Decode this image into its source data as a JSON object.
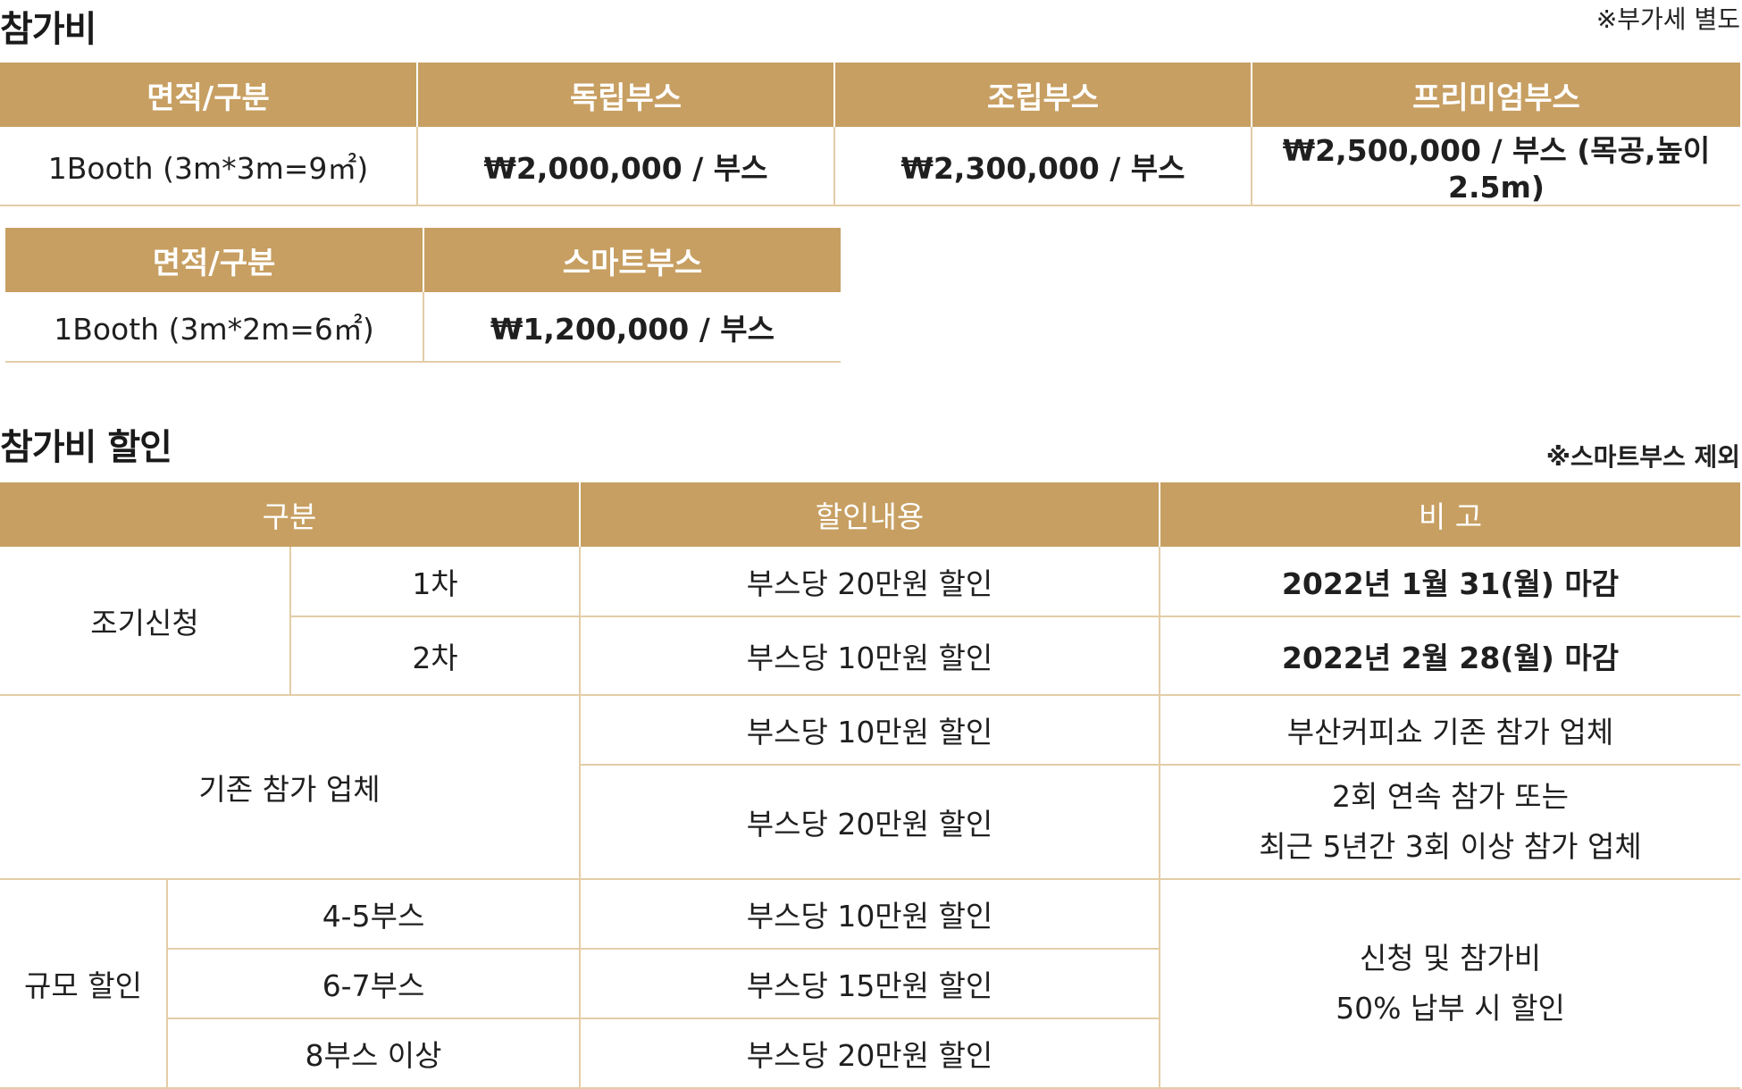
{
  "section1": {
    "title": "참가비",
    "note": "※부가세 별도"
  },
  "table1": {
    "headers": [
      "면적/구분",
      "독립부스",
      "조립부스",
      "프리미엄부스"
    ],
    "row": [
      "1Booth (3m*3m=9㎡)",
      "₩2,000,000 / 부스",
      "₩2,300,000 / 부스",
      "₩2,500,000 / 부스 (목공,높이 2.5m)"
    ]
  },
  "table2": {
    "headers": [
      "면적/구분",
      "스마트부스"
    ],
    "row": [
      "1Booth (3m*2m=6㎡)",
      "₩1,200,000 / 부스"
    ]
  },
  "section2": {
    "title": "참가비 할인",
    "note": "※스마트부스 제외"
  },
  "table3": {
    "headers": [
      "구분",
      "할인내용",
      "비 고"
    ],
    "early": {
      "label": "조기신청",
      "rows": [
        {
          "round": "1차",
          "discount": "부스당 20만원 할인",
          "remark": "2022년 1월 31(월) 마감"
        },
        {
          "round": "2차",
          "discount": "부스당 10만원 할인",
          "remark": "2022년 2월 28(월) 마감"
        }
      ]
    },
    "existing": {
      "label": "기존 참가 업체",
      "rows": [
        {
          "discount": "부스당 10만원 할인",
          "remark_lines": [
            "부산커피쇼 기존 참가 업체"
          ]
        },
        {
          "discount": "부스당 20만원 할인",
          "remark_lines": [
            "2회 연속 참가 또는",
            "최근 5년간 3회 이상 참가 업체"
          ]
        }
      ]
    },
    "scale": {
      "label": "규모 할인",
      "rows": [
        {
          "size": "4-5부스",
          "discount": "부스당 10만원 할인"
        },
        {
          "size": "6-7부스",
          "discount": "부스당 15만원 할인"
        },
        {
          "size": "8부스 이상",
          "discount": "부스당 20만원 할인"
        }
      ],
      "remark_lines": [
        "신청 및 참가비",
        "50% 납부 시 할인"
      ]
    }
  }
}
